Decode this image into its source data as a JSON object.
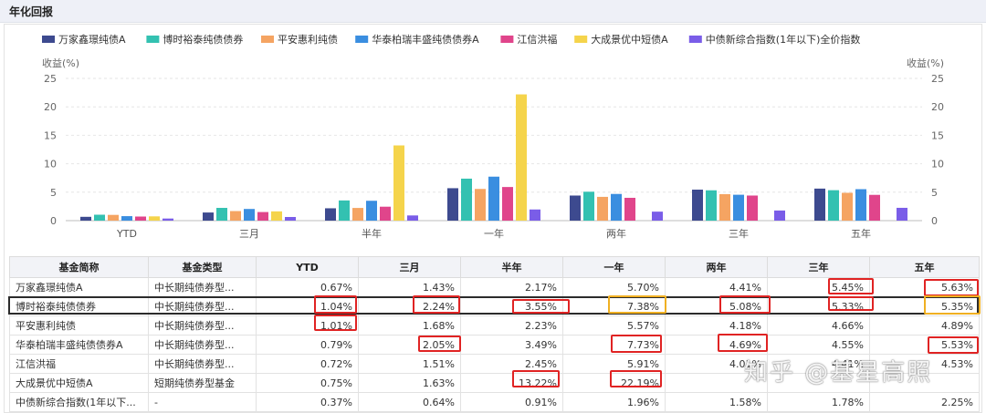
{
  "header": {
    "title": "年化回报"
  },
  "chart_data": {
    "type": "bar",
    "categories": [
      "YTD",
      "三月",
      "半年",
      "一年",
      "两年",
      "三年",
      "五年"
    ],
    "series": [
      {
        "name": "万家鑫璟纯债A",
        "color": "#3d4a8f",
        "values": [
          0.67,
          1.43,
          2.17,
          5.7,
          4.41,
          5.45,
          5.63
        ]
      },
      {
        "name": "博时裕泰纯债债券",
        "color": "#33c1b1",
        "values": [
          1.04,
          2.24,
          3.55,
          7.38,
          5.08,
          5.33,
          5.35
        ]
      },
      {
        "name": "平安惠利纯债",
        "color": "#f5a462",
        "values": [
          1.01,
          1.68,
          2.23,
          5.57,
          4.18,
          4.66,
          4.89
        ]
      },
      {
        "name": "华泰柏瑞丰盛纯债债券A",
        "color": "#3a8ee0",
        "values": [
          0.79,
          2.05,
          3.49,
          7.73,
          4.69,
          4.55,
          5.53
        ]
      },
      {
        "name": "江信洪福",
        "color": "#e0458b",
        "values": [
          0.72,
          1.51,
          2.45,
          5.91,
          4.01,
          4.41,
          4.53
        ]
      },
      {
        "name": "大成景优中短债A",
        "color": "#f5d44b",
        "values": [
          0.75,
          1.63,
          13.22,
          22.19,
          null,
          null,
          null
        ]
      },
      {
        "name": "中债新综合指数(1年以下)全价指数",
        "color": "#7a5de8",
        "values": [
          0.37,
          0.64,
          0.91,
          1.96,
          1.58,
          1.78,
          2.25
        ]
      }
    ],
    "ylabel_left": "收益(%)",
    "ylabel_right": "收益(%)",
    "ylim": [
      0,
      25
    ],
    "yticks": [
      0,
      5,
      10,
      15,
      20,
      25
    ],
    "grid": true,
    "legend": "top"
  },
  "table": {
    "headers": [
      "基金简称",
      "基金类型",
      "YTD",
      "三月",
      "半年",
      "一年",
      "两年",
      "三年",
      "五年"
    ],
    "rows": [
      [
        "万家鑫璟纯债A",
        "中长期纯债券型...",
        "0.67%",
        "1.43%",
        "2.17%",
        "5.70%",
        "4.41%",
        "5.45%",
        "5.63%"
      ],
      [
        "博时裕泰纯债债券",
        "中长期纯债券型...",
        "1.04%",
        "2.24%",
        "3.55%",
        "7.38%",
        "5.08%",
        "5.33%",
        "5.35%"
      ],
      [
        "平安惠利纯债",
        "中长期纯债券型...",
        "1.01%",
        "1.68%",
        "2.23%",
        "5.57%",
        "4.18%",
        "4.66%",
        "4.89%"
      ],
      [
        "华泰柏瑞丰盛纯债债券A",
        "中长期纯债券型...",
        "0.79%",
        "2.05%",
        "3.49%",
        "7.73%",
        "4.69%",
        "4.55%",
        "5.53%"
      ],
      [
        "江信洪福",
        "中长期纯债券型...",
        "0.72%",
        "1.51%",
        "2.45%",
        "5.91%",
        "4.01%",
        "4.41%",
        "4.53%"
      ],
      [
        "大成景优中短债A",
        "短期纯债券型基金",
        "0.75%",
        "1.63%",
        "13.22%",
        "22.19%",
        "",
        "",
        ""
      ],
      [
        "中债新综合指数(1年以下...",
        "-",
        "0.37%",
        "0.64%",
        "0.91%",
        "1.96%",
        "1.58%",
        "1.78%",
        "2.25%"
      ]
    ]
  },
  "watermark": "知乎 @基星高照"
}
